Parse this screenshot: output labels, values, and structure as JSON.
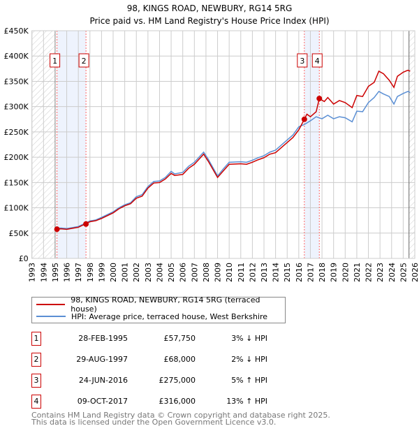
{
  "chart_data": {
    "type": "line",
    "title": "98, KINGS ROAD, NEWBURY, RG14 5RG",
    "subtitle": "Price paid vs. HM Land Registry's House Price Index (HPI)",
    "xlim": [
      1993,
      2026
    ],
    "ylim": [
      0,
      450000
    ],
    "x_ticks": [
      "1993",
      "1994",
      "1995",
      "1996",
      "1997",
      "1998",
      "1999",
      "2000",
      "2001",
      "2002",
      "2003",
      "2004",
      "2005",
      "2006",
      "2007",
      "2008",
      "2009",
      "2010",
      "2011",
      "2012",
      "2013",
      "2014",
      "2015",
      "2016",
      "2017",
      "2018",
      "2019",
      "2020",
      "2021",
      "2022",
      "2023",
      "2024",
      "2025",
      "2026"
    ],
    "y_ticks": [
      {
        "v": 0,
        "label": "£0"
      },
      {
        "v": 50000,
        "label": "£50K"
      },
      {
        "v": 100000,
        "label": "£100K"
      },
      {
        "v": 150000,
        "label": "£150K"
      },
      {
        "v": 200000,
        "label": "£200K"
      },
      {
        "v": 250000,
        "label": "£250K"
      },
      {
        "v": 300000,
        "label": "£300K"
      },
      {
        "v": 350000,
        "label": "£350K"
      },
      {
        "v": 400000,
        "label": "£400K"
      },
      {
        "v": 450000,
        "label": "£450K"
      }
    ],
    "grid": true,
    "series": [
      {
        "name": "HPI: Average price, terraced house, West Berkshire",
        "color": "#5b8fd4",
        "x": [
          1995.0,
          1995.5,
          1996,
          1996.5,
          1997,
          1997.6,
          1998,
          1998.5,
          1999,
          2000,
          2000.5,
          2001,
          2001.5,
          2002,
          2002.5,
          2003,
          2003.5,
          2004,
          2004.5,
          2005,
          2005.3,
          2006,
          2006.5,
          2007,
          2007.8,
          2008.2,
          2009,
          2009.5,
          2010,
          2011,
          2011.5,
          2012,
          2012.5,
          2013,
          2013.5,
          2014,
          2014.5,
          2015,
          2015.5,
          2016,
          2016.5,
          2017,
          2017.5,
          2018,
          2018.5,
          2019,
          2019.5,
          2020,
          2020.6,
          2021,
          2021.5,
          2022,
          2022.5,
          2022.9,
          2023.3,
          2023.8,
          2024.2,
          2024.5,
          2025,
          2025.4,
          2025.6
        ],
        "y": [
          59500,
          60000,
          59000,
          61000,
          63000,
          69500,
          74000,
          76000,
          81000,
          92000,
          100000,
          106000,
          110000,
          122000,
          126000,
          142000,
          152000,
          153000,
          160000,
          172000,
          167000,
          170000,
          182000,
          190000,
          210000,
          196000,
          163000,
          177000,
          190000,
          191000,
          190000,
          194000,
          199000,
          203000,
          210000,
          214000,
          224000,
          234000,
          244000,
          260000,
          265000,
          272000,
          280000,
          276000,
          283000,
          276000,
          280000,
          278000,
          270000,
          291000,
          290000,
          308000,
          318000,
          330000,
          325000,
          320000,
          305000,
          320000,
          326000,
          330000,
          328000
        ]
      },
      {
        "name": "98, KINGS ROAD, NEWBURY, RG14 5RG (terraced house)",
        "color": "#cc0000",
        "x": [
          1995.0,
          1995.5,
          1996,
          1996.5,
          1997,
          1997.6,
          1998,
          1998.5,
          1999,
          2000,
          2000.5,
          2001,
          2001.5,
          2002,
          2002.5,
          2003,
          2003.5,
          2004,
          2004.5,
          2005,
          2005.3,
          2006,
          2006.5,
          2007,
          2007.8,
          2008.2,
          2009,
          2009.5,
          2010,
          2011,
          2011.5,
          2012,
          2012.5,
          2013,
          2013.5,
          2014,
          2014.5,
          2015,
          2015.5,
          2016,
          2016.48,
          2016.7,
          2017,
          2017.5,
          2017.77,
          2018.2,
          2018.5,
          2019,
          2019.5,
          2020,
          2020.6,
          2021,
          2021.5,
          2022,
          2022.5,
          2022.9,
          2023.3,
          2023.8,
          2024.2,
          2024.5,
          2025,
          2025.4,
          2025.6
        ],
        "y": [
          57750,
          58500,
          57500,
          59500,
          61500,
          68000,
          72500,
          74500,
          79000,
          90000,
          98000,
          104000,
          108000,
          119000,
          123000,
          139000,
          149000,
          150000,
          157000,
          168000,
          164000,
          166000,
          178000,
          186000,
          206000,
          192000,
          160000,
          173000,
          186000,
          187000,
          186000,
          190000,
          195000,
          199000,
          206000,
          209000,
          219000,
          229000,
          239000,
          254000,
          275000,
          285000,
          280000,
          290000,
          316000,
          310000,
          318000,
          305000,
          312000,
          308000,
          298000,
          322000,
          320000,
          340000,
          348000,
          370000,
          365000,
          352000,
          338000,
          360000,
          368000,
          372000,
          370000
        ]
      }
    ],
    "sales": [
      {
        "n": "1",
        "x": 1995.16,
        "y": 57750
      },
      {
        "n": "2",
        "x": 1997.66,
        "y": 68000
      },
      {
        "n": "3",
        "x": 2016.48,
        "y": 275000
      },
      {
        "n": "4",
        "x": 2017.77,
        "y": 316000
      }
    ],
    "bands": [
      [
        1995.16,
        1997.66
      ],
      [
        2016.48,
        2017.77
      ]
    ],
    "hatch": [
      [
        1993,
        1995
      ],
      [
        2025.5,
        2026
      ]
    ]
  },
  "legend": {
    "red": "98, KINGS ROAD, NEWBURY, RG14 5RG (terraced house)",
    "blue": "HPI: Average price, terraced house, West Berkshire"
  },
  "table": [
    {
      "n": "1",
      "date": "28-FEB-1995",
      "price": "£57,750",
      "hpi": "3% ↓ HPI"
    },
    {
      "n": "2",
      "date": "29-AUG-1997",
      "price": "£68,000",
      "hpi": "2% ↓ HPI"
    },
    {
      "n": "3",
      "date": "24-JUN-2016",
      "price": "£275,000",
      "hpi": "5% ↑ HPI"
    },
    {
      "n": "4",
      "date": "09-OCT-2017",
      "price": "£316,000",
      "hpi": "13% ↑ HPI"
    }
  ],
  "footer": {
    "line1": "Contains HM Land Registry data © Crown copyright and database right 2025.",
    "line2": "This data is licensed under the Open Government Licence v3.0."
  }
}
